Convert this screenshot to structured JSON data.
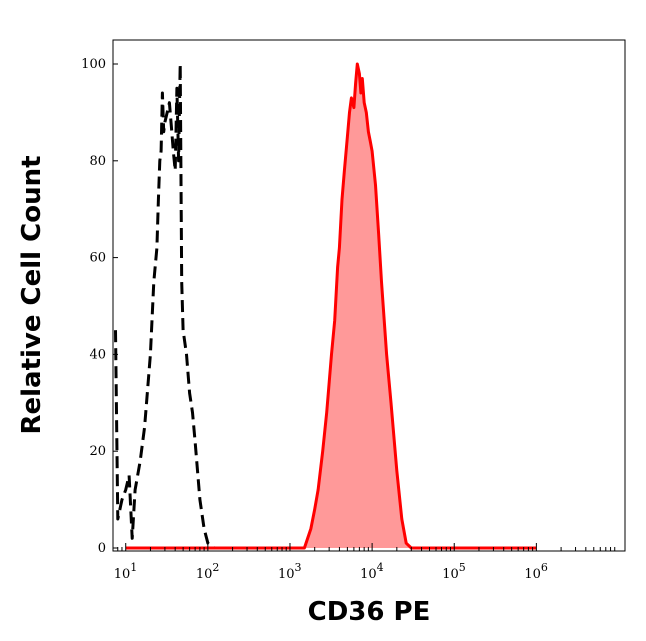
{
  "chart_data": {
    "type": "area",
    "xlabel": "CD36 PE",
    "ylabel": "Relative Cell Count",
    "x_scale": "log",
    "xlim": [
      7,
      12000000
    ],
    "ylim": [
      0,
      105
    ],
    "x_ticks": [
      {
        "value": 10,
        "base": "10",
        "exp": "1"
      },
      {
        "value": 100,
        "base": "10",
        "exp": "2"
      },
      {
        "value": 1000,
        "base": "10",
        "exp": "3"
      },
      {
        "value": 10000,
        "base": "10",
        "exp": "4"
      },
      {
        "value": 100000,
        "base": "10",
        "exp": "5"
      },
      {
        "value": 1000000,
        "base": "10",
        "exp": "6"
      }
    ],
    "y_ticks": [
      0,
      20,
      40,
      60,
      80,
      100
    ],
    "grid": false,
    "series": [
      {
        "style": "dashed",
        "color": "#000000",
        "x": [
          7.5,
          8,
          9,
          10,
          11,
          12,
          13,
          15,
          17,
          20,
          22,
          24,
          25,
          26,
          27,
          28,
          29,
          30,
          32,
          34,
          36,
          38,
          40,
          42,
          44,
          46,
          48,
          50,
          55,
          60,
          65,
          70,
          80,
          90,
          100,
          120,
          150,
          200,
          300,
          1000
        ],
        "y": [
          45,
          6,
          10,
          12,
          15,
          2,
          12,
          18,
          25,
          40,
          55,
          62,
          72,
          80,
          82,
          94,
          86,
          88,
          90,
          92,
          87,
          82,
          78,
          95,
          80,
          100,
          55,
          45,
          40,
          32,
          28,
          22,
          10,
          4,
          1,
          0,
          0,
          0,
          0,
          0
        ]
      },
      {
        "style": "filled",
        "color": "#ff0000",
        "fill": "#ff9999",
        "x": [
          10,
          1500,
          1800,
          2000,
          2200,
          2500,
          2800,
          3200,
          3500,
          3800,
          4000,
          4300,
          4600,
          5000,
          5300,
          5600,
          6000,
          6300,
          6600,
          7000,
          7300,
          7600,
          8000,
          8500,
          9000,
          9500,
          10000,
          11000,
          12000,
          13000,
          15000,
          17000,
          20000,
          23000,
          26000,
          30000,
          40000,
          1000000
        ],
        "y": [
          0,
          0,
          4,
          8,
          12,
          20,
          28,
          40,
          47,
          58,
          62,
          72,
          78,
          85,
          90,
          93,
          91,
          96,
          100,
          98,
          94,
          97,
          92,
          90,
          86,
          84,
          82,
          75,
          65,
          55,
          40,
          30,
          16,
          6,
          1,
          0,
          0,
          0
        ]
      }
    ]
  }
}
